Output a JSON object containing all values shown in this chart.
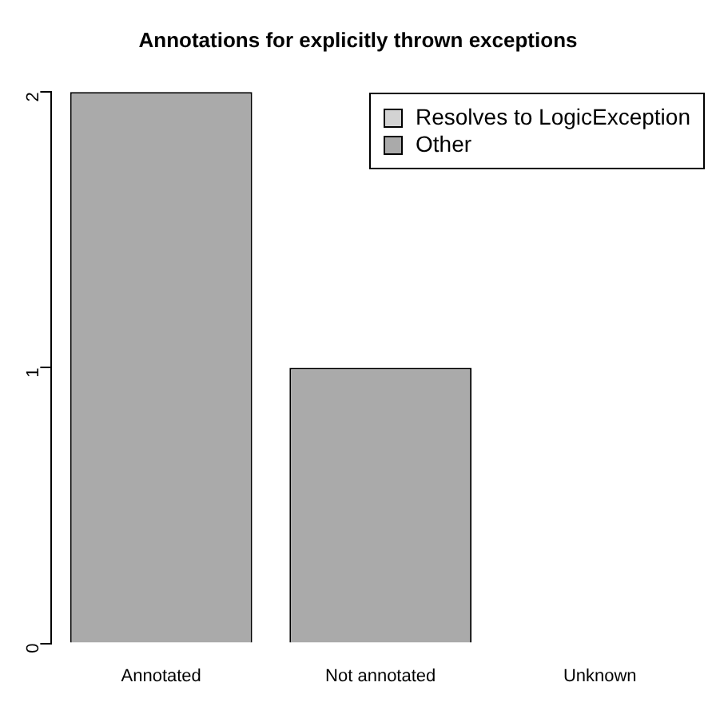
{
  "chart_data": {
    "type": "bar",
    "title": "Annotations for explicitly thrown exceptions",
    "categories": [
      "Annotated",
      "Not annotated",
      "Unknown"
    ],
    "series": [
      {
        "name": "Resolves to LogicException",
        "color": "#d3d3d3",
        "values": [
          0,
          0,
          0
        ]
      },
      {
        "name": "Other",
        "color": "#aaaaaa",
        "values": [
          2,
          1,
          0
        ]
      }
    ],
    "stacked": true,
    "ylim": [
      0,
      2
    ],
    "yticks": [
      0,
      1,
      2
    ],
    "grid": false,
    "legend": "top right"
  }
}
